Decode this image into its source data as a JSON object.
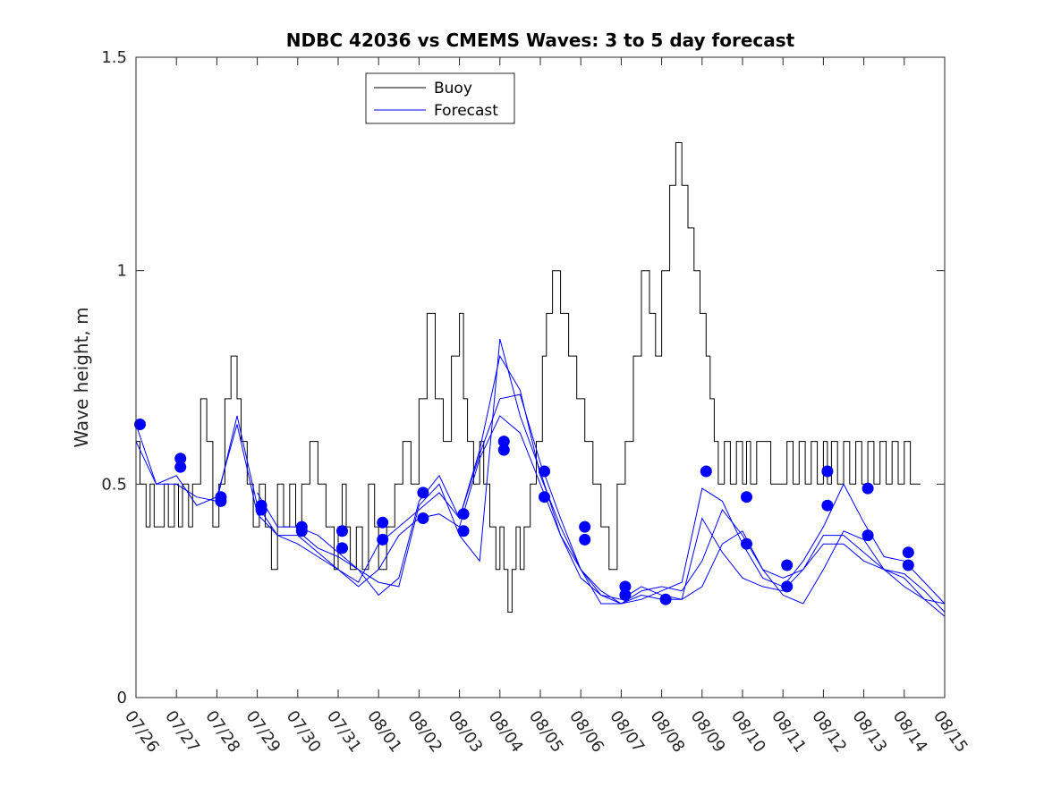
{
  "chart_data": {
    "type": "line",
    "title": "NDBC 42036 vs CMEMS Waves: 3 to 5 day forecast",
    "xlabel": "",
    "ylabel": "Wave height, m",
    "xlim": [
      "07/26",
      "08/15"
    ],
    "ylim": [
      0,
      1.5
    ],
    "x_tick_labels": [
      "07/26",
      "07/27",
      "07/28",
      "07/29",
      "07/30",
      "07/31",
      "08/01",
      "08/02",
      "08/03",
      "08/04",
      "08/05",
      "08/06",
      "08/07",
      "08/08",
      "08/09",
      "08/10",
      "08/11",
      "08/12",
      "08/13",
      "08/14",
      "08/15"
    ],
    "y_ticks": [
      0,
      0.5,
      1,
      1.5
    ],
    "y_tick_labels": [
      "0",
      "0.5",
      "1",
      "1.5"
    ],
    "grid": false,
    "legend_position": "top-center",
    "x_units": "days since 07/26",
    "series": [
      {
        "name": "Buoy",
        "color": "#000000",
        "style": "stairs",
        "x": [
          0,
          0.1,
          0.25,
          0.35,
          0.45,
          0.7,
          0.8,
          0.95,
          1.05,
          1.15,
          1.3,
          1.4,
          1.6,
          1.75,
          1.9,
          2.05,
          2.2,
          2.35,
          2.5,
          2.6,
          2.75,
          2.9,
          3.05,
          3.2,
          3.35,
          3.5,
          3.65,
          3.8,
          3.95,
          4.1,
          4.3,
          4.5,
          4.7,
          4.9,
          5.0,
          5.1,
          5.2,
          5.3,
          5.45,
          5.6,
          5.75,
          5.9,
          6.0,
          6.2,
          6.4,
          6.6,
          6.8,
          7.0,
          7.2,
          7.4,
          7.6,
          7.8,
          8.0,
          8.1,
          8.2,
          8.35,
          8.5,
          8.6,
          8.75,
          8.9,
          9.0,
          9.1,
          9.2,
          9.3,
          9.4,
          9.5,
          9.6,
          9.75,
          9.9,
          10.05,
          10.15,
          10.3,
          10.5,
          10.7,
          10.9,
          11.1,
          11.3,
          11.5,
          11.7,
          11.9,
          12.1,
          12.3,
          12.5,
          12.7,
          12.85,
          13.0,
          13.2,
          13.35,
          13.5,
          13.65,
          13.8,
          13.95,
          14.1,
          14.2,
          14.3,
          14.4,
          14.55,
          14.7,
          14.85,
          15.0,
          15.1,
          15.2,
          15.35,
          15.5,
          15.7,
          15.9,
          16.0,
          16.1,
          16.25,
          16.4,
          16.55,
          16.7,
          16.85,
          17.0,
          17.1,
          17.2,
          17.35,
          17.5,
          17.65,
          17.8,
          17.95,
          18.1,
          18.25,
          18.4,
          18.55,
          18.7,
          18.85,
          19.0,
          19.15,
          19.3
        ],
        "values": [
          0.6,
          0.5,
          0.4,
          0.5,
          0.4,
          0.5,
          0.4,
          0.5,
          0.4,
          0.5,
          0.4,
          0.5,
          0.7,
          0.6,
          0.4,
          0.5,
          0.7,
          0.8,
          0.7,
          0.6,
          0.5,
          0.4,
          0.5,
          0.4,
          0.3,
          0.5,
          0.4,
          0.5,
          0.4,
          0.5,
          0.6,
          0.5,
          0.4,
          0.3,
          0.4,
          0.5,
          0.4,
          0.3,
          0.4,
          0.3,
          0.5,
          0.4,
          0.3,
          0.4,
          0.5,
          0.6,
          0.5,
          0.7,
          0.9,
          0.7,
          0.6,
          0.8,
          0.9,
          0.7,
          0.6,
          0.5,
          0.6,
          0.5,
          0.4,
          0.3,
          0.4,
          0.3,
          0.2,
          0.3,
          0.4,
          0.3,
          0.4,
          0.5,
          0.6,
          0.8,
          0.9,
          1.0,
          0.9,
          0.8,
          0.7,
          0.6,
          0.5,
          0.4,
          0.3,
          0.5,
          0.6,
          0.8,
          1.0,
          0.9,
          0.8,
          1.0,
          1.2,
          1.3,
          1.2,
          1.1,
          1.0,
          0.9,
          0.8,
          0.7,
          0.6,
          0.5,
          0.6,
          0.5,
          0.6,
          0.5,
          0.6,
          0.5,
          0.6,
          0.6,
          0.5,
          0.5,
          0.5,
          0.6,
          0.5,
          0.6,
          0.5,
          0.6,
          0.5,
          0.6,
          0.5,
          0.6,
          0.5,
          0.6,
          0.5,
          0.6,
          0.5,
          0.6,
          0.5,
          0.6,
          0.5,
          0.6,
          0.5,
          0.6,
          0.5,
          0.5
        ]
      },
      {
        "name": "Forecast",
        "color": "#0000ff",
        "style": "line",
        "x": [
          0,
          0.5,
          1,
          1.5,
          2,
          2.5,
          3,
          3.5,
          4,
          4.5,
          5,
          5.5,
          6,
          6.5,
          7,
          7.5,
          8,
          8.5,
          9,
          9.5,
          10,
          10.5,
          11,
          11.5,
          12,
          12.5,
          13,
          13.5,
          14,
          14.5,
          15,
          15.5,
          16,
          16.5,
          17,
          17.5,
          18,
          18.5,
          19,
          19.5,
          20
        ],
        "values": [
          0.64,
          0.5,
          0.5,
          0.47,
          0.46,
          0.66,
          0.45,
          0.38,
          0.36,
          0.33,
          0.3,
          0.27,
          0.36,
          0.4,
          0.44,
          0.48,
          0.42,
          0.57,
          0.7,
          0.71,
          0.55,
          0.42,
          0.3,
          0.25,
          0.22,
          0.23,
          0.25,
          0.27,
          0.49,
          0.46,
          0.36,
          0.28,
          0.26,
          0.32,
          0.4,
          0.5,
          0.41,
          0.33,
          0.32,
          0.27,
          0.22
        ]
      },
      {
        "name": "",
        "color": "#0000ff",
        "style": "line",
        "x": [
          0,
          0.5,
          1,
          1.5,
          2,
          2.5,
          3,
          3.5,
          4,
          4.5,
          5,
          5.5,
          6,
          6.5,
          7,
          7.5,
          8,
          8.5,
          9,
          9.5,
          10,
          10.5,
          11,
          11.5,
          12,
          12.5,
          13,
          13.5,
          14,
          14.5,
          15,
          15.5,
          16,
          16.5,
          17,
          17.5,
          18,
          18.5,
          19,
          19.5,
          20
        ],
        "values": [
          0.6,
          0.5,
          0.52,
          0.45,
          0.47,
          0.64,
          0.43,
          0.38,
          0.38,
          0.34,
          0.3,
          0.26,
          0.3,
          0.38,
          0.42,
          0.43,
          0.4,
          0.56,
          0.66,
          0.62,
          0.5,
          0.38,
          0.28,
          0.24,
          0.22,
          0.25,
          0.26,
          0.25,
          0.32,
          0.44,
          0.38,
          0.3,
          0.28,
          0.3,
          0.38,
          0.38,
          0.34,
          0.3,
          0.29,
          0.25,
          0.2
        ]
      },
      {
        "name": "",
        "color": "#0000ff",
        "style": "line",
        "x": [
          3,
          3.5,
          4,
          4.5,
          5,
          5.5,
          6,
          6.5,
          7,
          7.5,
          8,
          8.5,
          9,
          9.5,
          10,
          10.5,
          11,
          11.5,
          12,
          12.5,
          13,
          13.5,
          14,
          14.5,
          15,
          15.5,
          16,
          16.5,
          17,
          17.5,
          18,
          18.5,
          19,
          19.5,
          20
        ],
        "values": [
          0.48,
          0.4,
          0.4,
          0.38,
          0.34,
          0.3,
          0.24,
          0.28,
          0.46,
          0.52,
          0.42,
          0.58,
          0.8,
          0.72,
          0.52,
          0.4,
          0.3,
          0.24,
          0.23,
          0.26,
          0.24,
          0.23,
          0.42,
          0.34,
          0.28,
          0.26,
          0.25,
          0.3,
          0.36,
          0.36,
          0.32,
          0.3,
          0.28,
          0.23,
          0.19
        ]
      },
      {
        "name": "",
        "color": "#0000ff",
        "style": "line",
        "x": [
          4,
          4.5,
          5,
          5.5,
          6,
          6.5,
          7,
          7.5,
          8,
          8.5,
          9,
          9.5,
          10,
          10.5,
          11,
          11.5,
          12,
          12.5,
          13,
          13.5,
          14,
          14.5,
          15,
          15.5,
          16,
          16.5,
          17,
          17.5,
          18,
          18.5,
          19,
          19.5,
          20
        ],
        "values": [
          0.39,
          0.35,
          0.33,
          0.3,
          0.27,
          0.26,
          0.45,
          0.5,
          0.38,
          0.32,
          0.84,
          0.66,
          0.53,
          0.38,
          0.3,
          0.22,
          0.22,
          0.24,
          0.23,
          0.23,
          0.26,
          0.36,
          0.39,
          0.3,
          0.24,
          0.22,
          0.3,
          0.39,
          0.37,
          0.3,
          0.26,
          0.23,
          0.22
        ]
      }
    ],
    "markers": {
      "color": "#0000ff",
      "shape": "filled-circle",
      "points": [
        [
          0.1,
          0.64
        ],
        [
          1.1,
          0.56
        ],
        [
          1.1,
          0.54
        ],
        [
          2.1,
          0.47
        ],
        [
          2.1,
          0.46
        ],
        [
          3.1,
          0.45
        ],
        [
          3.1,
          0.44
        ],
        [
          4.1,
          0.4
        ],
        [
          4.1,
          0.39
        ],
        [
          5.1,
          0.39
        ],
        [
          5.1,
          0.35
        ],
        [
          6.1,
          0.41
        ],
        [
          6.1,
          0.37
        ],
        [
          7.1,
          0.48
        ],
        [
          7.1,
          0.42
        ],
        [
          8.1,
          0.43
        ],
        [
          8.1,
          0.39
        ],
        [
          9.1,
          0.6
        ],
        [
          9.1,
          0.58
        ],
        [
          10.1,
          0.53
        ],
        [
          10.1,
          0.47
        ],
        [
          11.1,
          0.4
        ],
        [
          11.1,
          0.37
        ],
        [
          12.1,
          0.26
        ],
        [
          12.1,
          0.24
        ],
        [
          13.1,
          0.23
        ],
        [
          14.1,
          0.53
        ],
        [
          15.1,
          0.47
        ],
        [
          15.1,
          0.36
        ],
        [
          16.1,
          0.31
        ],
        [
          16.1,
          0.26
        ],
        [
          17.1,
          0.53
        ],
        [
          17.1,
          0.45
        ],
        [
          18.1,
          0.49
        ],
        [
          18.1,
          0.38
        ],
        [
          19.1,
          0.34
        ],
        [
          19.1,
          0.31
        ]
      ]
    }
  }
}
